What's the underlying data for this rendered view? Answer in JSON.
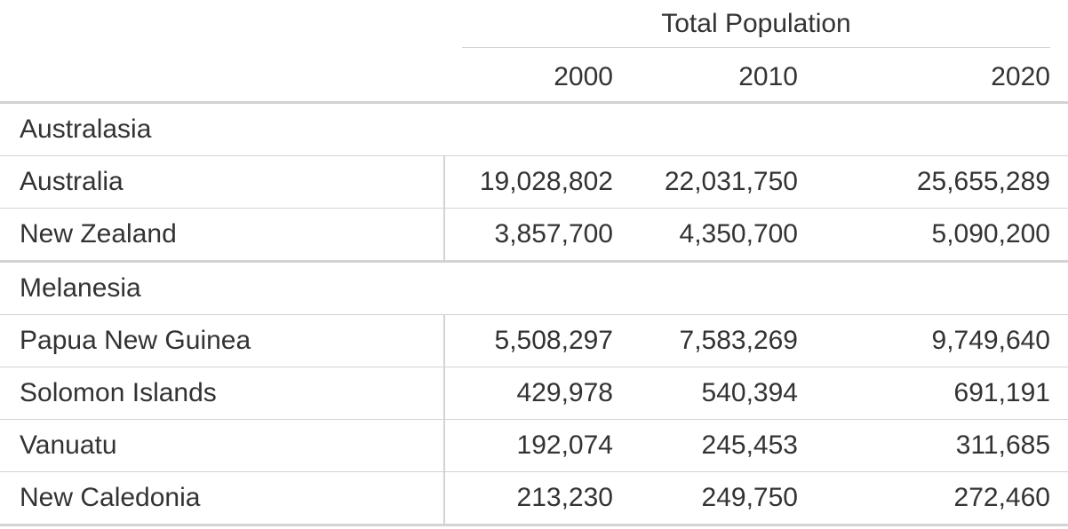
{
  "table": {
    "spanner": "Total Population",
    "columns": [
      "2000",
      "2010",
      "2020"
    ],
    "groups": [
      {
        "label": "Australasia",
        "rows": [
          [
            "Australia",
            "19,028,802",
            "22,031,750",
            "25,655,289"
          ],
          [
            "New Zealand",
            "3,857,700",
            "4,350,700",
            "5,090,200"
          ]
        ]
      },
      {
        "label": "Melanesia",
        "rows": [
          [
            "Papua New Guinea",
            "5,508,297",
            "7,583,269",
            "9,749,640"
          ],
          [
            "Solomon Islands",
            "429,978",
            "540,394",
            "691,191"
          ],
          [
            "Vanuatu",
            "192,074",
            "245,453",
            "311,685"
          ],
          [
            "New Caledonia",
            "213,230",
            "249,750",
            "272,460"
          ]
        ]
      }
    ]
  }
}
